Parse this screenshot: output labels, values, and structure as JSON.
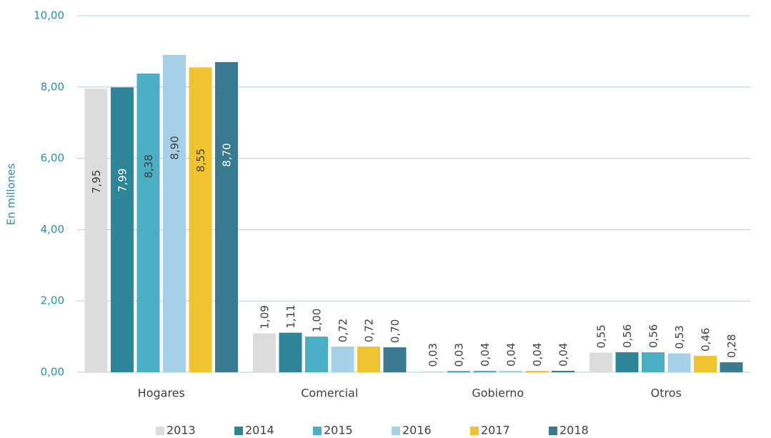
{
  "chart_data": {
    "type": "bar",
    "y_label": "En millones",
    "categories": [
      "Hogares",
      "Comercial",
      "Gobierno",
      "Otros"
    ],
    "series": [
      {
        "name": "2013",
        "color": "#dcdcdc",
        "values": [
          7.95,
          1.09,
          0.03,
          0.55
        ],
        "value_labels": [
          "7,95",
          "1,09",
          "0,03",
          "0,55"
        ]
      },
      {
        "name": "2014",
        "color": "#2e8598",
        "values": [
          7.99,
          1.11,
          0.03,
          0.56
        ],
        "value_labels": [
          "7,99",
          "1,11",
          "0,03",
          "0,56"
        ]
      },
      {
        "name": "2015",
        "color": "#4aaec5",
        "values": [
          8.38,
          1.0,
          0.04,
          0.56
        ],
        "value_labels": [
          "8,38",
          "1,00",
          "0,04",
          "0,56"
        ]
      },
      {
        "name": "2016",
        "color": "#a6d0e8",
        "values": [
          8.9,
          0.72,
          0.04,
          0.53
        ],
        "value_labels": [
          "8,90",
          "0,72",
          "0,04",
          "0,53"
        ]
      },
      {
        "name": "2017",
        "color": "#f0c431",
        "values": [
          8.55,
          0.72,
          0.04,
          0.46
        ],
        "value_labels": [
          "8,55",
          "0,72",
          "0,04",
          "0,46"
        ]
      },
      {
        "name": "2018",
        "color": "#3a7a90",
        "values": [
          8.7,
          0.7,
          0.04,
          0.28
        ],
        "value_labels": [
          "8,70",
          "0,70",
          "0,04",
          "0,28"
        ]
      }
    ],
    "ylim": [
      0,
      10
    ],
    "yticks": [
      {
        "value": 0,
        "label": "0,00"
      },
      {
        "value": 2,
        "label": "2,00"
      },
      {
        "value": 4,
        "label": "4,00"
      },
      {
        "value": 6,
        "label": "6,00"
      },
      {
        "value": 8,
        "label": "8,00"
      },
      {
        "value": 10,
        "label": "10,00"
      }
    ],
    "grid": true
  }
}
